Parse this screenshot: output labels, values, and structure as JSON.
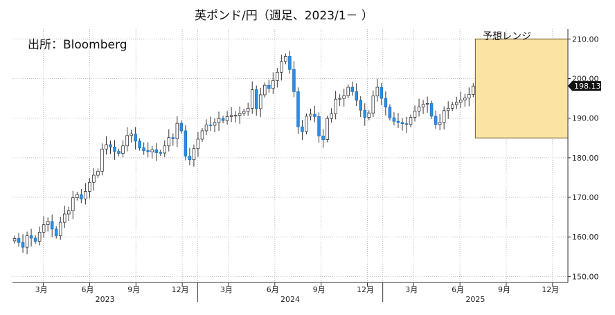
{
  "chart_data": {
    "type": "candlestick",
    "title": "英ポンド/円（週足、2023/1－ ）",
    "source": "出所：Bloomberg",
    "ylim": [
      148.5,
      212.5
    ],
    "yticks": [
      150,
      160,
      170,
      180,
      190,
      200,
      210
    ],
    "ytick_labels": [
      "150.00",
      "160.00",
      "170.00",
      "180.00",
      "190.00",
      "200.00",
      "210.00"
    ],
    "x_months": [
      {
        "m": 2023.167,
        "label": "3月"
      },
      {
        "m": 2023.417,
        "label": "6月"
      },
      {
        "m": 2023.667,
        "label": "9月"
      },
      {
        "m": 2023.917,
        "label": "12月"
      },
      {
        "m": 2024.167,
        "label": "3月"
      },
      {
        "m": 2024.417,
        "label": "6月"
      },
      {
        "m": 2024.667,
        "label": "9月"
      },
      {
        "m": 2024.917,
        "label": "12月"
      },
      {
        "m": 2025.167,
        "label": "3月"
      },
      {
        "m": 2025.417,
        "label": "6月"
      },
      {
        "m": 2025.667,
        "label": "9月"
      },
      {
        "m": 2025.917,
        "label": "12月"
      }
    ],
    "x_years": [
      {
        "x": 2023.5,
        "label": "2023"
      },
      {
        "x": 2024.5,
        "label": "2024"
      },
      {
        "x": 2025.5,
        "label": "2025"
      }
    ],
    "xlim": [
      2023.0,
      2026.0
    ],
    "x_gridlines": [
      2024.0,
      2025.0
    ],
    "forecast_range": {
      "label": "予想レンジ",
      "low": 185,
      "high": 210,
      "x_start": 2025.5
    },
    "last_price": {
      "value": 198.13,
      "label": "198.13"
    },
    "closes": [
      159.6,
      158.6,
      157.4,
      160.3,
      159.7,
      158.9,
      161.2,
      163.1,
      163.9,
      162.0,
      160.3,
      163.7,
      165.8,
      166.6,
      169.9,
      170.7,
      169.6,
      171.5,
      173.8,
      175.6,
      176.6,
      182.2,
      183.3,
      182.7,
      181.6,
      181.1,
      183.0,
      185.6,
      186.0,
      184.2,
      182.5,
      181.8,
      181.5,
      182.0,
      181.3,
      181.2,
      183.0,
      185.1,
      184.8,
      188.7,
      186.8,
      180.4,
      179.5,
      182.3,
      184.7,
      186.8,
      188.3,
      188.2,
      188.9,
      189.9,
      189.4,
      190.4,
      190.7,
      190.7,
      191.2,
      191.7,
      192.5,
      197.2,
      192.4,
      195.9,
      198.3,
      197.5,
      199.5,
      201.6,
      204.3,
      205.6,
      202.3,
      196.7,
      187.8,
      186.6,
      190.5,
      191.0,
      190.4,
      185.5,
      184.6,
      189.9,
      191.1,
      194.8,
      195.0,
      195.7,
      197.8,
      196.7,
      194.5,
      192.0,
      190.2,
      191.3,
      195.6,
      197.8,
      195.0,
      192.8,
      190.1,
      189.2,
      188.9,
      188.6,
      188.4,
      190.2,
      191.8,
      192.8,
      193.5,
      193.7,
      190.5,
      188.4,
      188.9,
      191.9,
      192.5,
      193.4,
      194.0,
      194.6,
      195.1,
      196.0,
      198.1
    ]
  }
}
